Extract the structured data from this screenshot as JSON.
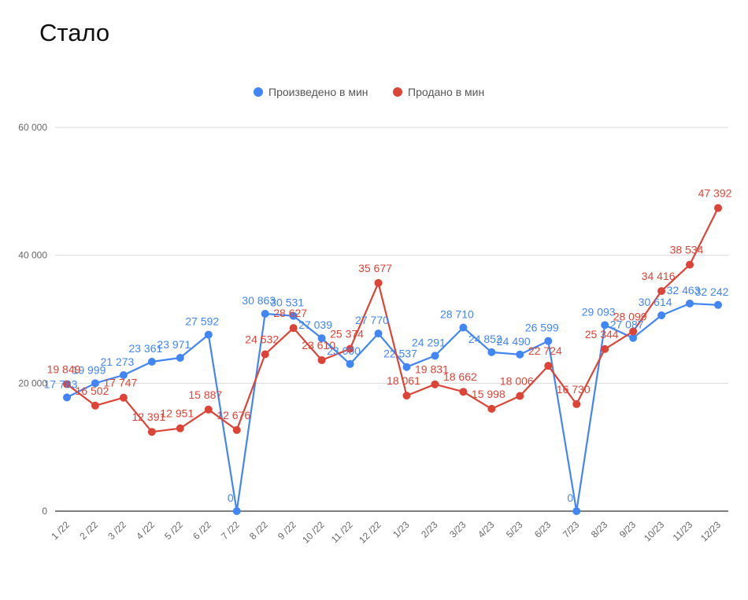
{
  "page": {
    "heading": "Стало"
  },
  "colors": {
    "produced": "#4285f4",
    "sold": "#db4437",
    "grid": "#d9d9d9",
    "axis": "#333333"
  },
  "chart_data": {
    "type": "line",
    "title": "",
    "xlabel": "",
    "ylabel": "",
    "ylim": [
      0,
      60000
    ],
    "yticks": [
      0,
      20000,
      40000,
      60000
    ],
    "ytick_labels": [
      "0",
      "20 000",
      "40 000",
      "60 000"
    ],
    "grid": true,
    "legend_position": "top",
    "categories": [
      "1 /22",
      "2 /22",
      "3 /22",
      "4 /22",
      "5 /22",
      "6 /22",
      "7 /22",
      "8 /22",
      "9 /22",
      "10 /22",
      "11 /22",
      "12 /22",
      "1/23",
      "2/23",
      "3/23",
      "4/23",
      "5/23",
      "6/23",
      "7/23",
      "8/23",
      "9/23",
      "10/23",
      "11/23",
      "12/23"
    ],
    "series": [
      {
        "name": "Произведено в мин",
        "color": "#4285f4",
        "values": [
          17783,
          19999,
          21273,
          23361,
          23971,
          27592,
          0,
          30863,
          30531,
          27039,
          23000,
          27770,
          22537,
          24291,
          28710,
          24852,
          24490,
          26599,
          0,
          29093,
          27087,
          30614,
          32463,
          32242
        ],
        "labels": [
          "17 783",
          "19 999",
          "21 273",
          "23 361",
          "23 971",
          "27 592",
          "0",
          "30 863",
          "30 531",
          "27 039",
          "23 000",
          "27 770",
          "22 537",
          "24 291",
          "28 710",
          "24 852",
          "24 490",
          "26 599",
          "0",
          "29 093",
          "27 087",
          "30 614",
          "32 463",
          "32 242"
        ]
      },
      {
        "name": "Продано в мин",
        "color": "#db4437",
        "values": [
          19849,
          16502,
          17747,
          12391,
          12951,
          15887,
          12676,
          24532,
          28627,
          23610,
          25374,
          35677,
          18061,
          19831,
          18662,
          15998,
          18006,
          22724,
          16730,
          25344,
          28099,
          34416,
          38534,
          47392
        ],
        "labels": [
          "19 849",
          "16 502",
          "17 747",
          "12 391",
          "12 951",
          "15 887",
          "12 676",
          "24 532",
          "28 627",
          "23 610",
          "25 374",
          "35 677",
          "18 061",
          "19 831",
          "18 662",
          "15 998",
          "18 006",
          "22 724",
          "16 730",
          "25 344",
          "28 099",
          "34 416",
          "38 534",
          "47 392"
        ]
      }
    ]
  }
}
